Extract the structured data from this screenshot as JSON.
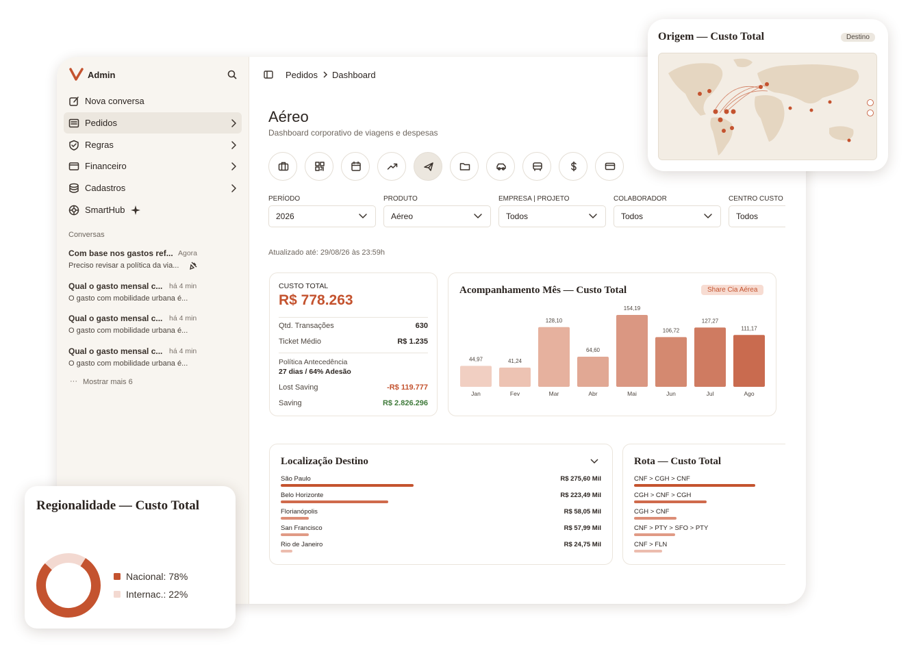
{
  "sidebar": {
    "brand": "Admin",
    "nav": [
      "Nova conversa",
      "Pedidos",
      "Regras",
      "Financeiro",
      "Cadastros",
      "SmartHub"
    ],
    "section": "Conversas",
    "conversations": [
      {
        "title": "Com base nos gastos ref...",
        "time": "Agora",
        "preview": "Preciso revisar a política da via..."
      },
      {
        "title": "Qual o gasto mensal c...",
        "time": "há 4 min",
        "preview": "O gasto com mobilidade urbana é..."
      },
      {
        "title": "Qual o gasto mensal c...",
        "time": "há 4 min",
        "preview": "O gasto com mobilidade urbana é..."
      },
      {
        "title": "Qual o gasto mensal c...",
        "time": "há 4 min",
        "preview": "O gasto com mobilidade urbana é..."
      }
    ],
    "more": "Mostrar mais 6"
  },
  "breadcrumb": [
    "Pedidos",
    "Dashboard"
  ],
  "page": {
    "title": "Aéreo",
    "subtitle": "Dashboard corporativo de viagens e despesas"
  },
  "filters": [
    {
      "label": "PERÍODO",
      "value": "2026"
    },
    {
      "label": "PRODUTO",
      "value": "Aéreo"
    },
    {
      "label": "EMPRESA | PROJETO",
      "value": "Todos"
    },
    {
      "label": "COLABORADOR",
      "value": "Todos"
    },
    {
      "label": "CENTRO CUSTO",
      "value": "Todos"
    }
  ],
  "updated": "Atualizado até: 29/08/26 às 23:59h",
  "summary": {
    "label": "CUSTO TOTAL",
    "total": "R$ 778.263",
    "rows": [
      {
        "label": "Qtd. Transações",
        "value": "630"
      },
      {
        "label": "Ticket Médio",
        "value": "R$ 1.235"
      }
    ],
    "policy": {
      "label": "Política Antecedência",
      "value": "27 dias / 64% Adesão"
    },
    "lost_saving": {
      "label": "Lost Saving",
      "value": "-R$ 119.777"
    },
    "saving": {
      "label": "Saving",
      "value": "R$ 2.826.296"
    }
  },
  "monthly_chart": {
    "type": "bar",
    "title": "Acompanhamento Mês — Custo Total",
    "badge": "Share Cia Aérea",
    "categories": [
      "Jan",
      "Fev",
      "Mar",
      "Abr",
      "Mai",
      "Jun",
      "Jul",
      "Ago"
    ],
    "values": [
      44.97,
      41.24,
      128.1,
      64.6,
      154.19,
      106.72,
      127.27,
      111.17
    ],
    "value_labels": [
      "44,97",
      "41,24",
      "128,10",
      "64,60",
      "154,19",
      "106,72",
      "127,27",
      "111,17"
    ],
    "colors": [
      "#f1cfc2",
      "#edc3b3",
      "#e6b19e",
      "#e1a894",
      "#da9782",
      "#d48970",
      "#cf7b61",
      "#c96b4f"
    ]
  },
  "destinations": {
    "title": "Localização Destino",
    "categories": [
      "São Paulo",
      "Belo Horizonte",
      "Florianópolis",
      "San Francisco",
      "Rio de Janeiro"
    ],
    "values": [
      275.6,
      223.49,
      58.05,
      57.99,
      24.75
    ],
    "value_labels": [
      "R$ 275,60 Mil",
      "R$ 223,49 Mil",
      "R$ 58,05 Mil",
      "R$ 57,99 Mil",
      "R$ 24,75 Mil"
    ],
    "colors": [
      "#c4532f",
      "#cf6a4c",
      "#dc8d76",
      "#e09a85",
      "#ecbcae"
    ]
  },
  "routes": {
    "title": "Rota — Custo Total",
    "categories": [
      "CNF > CGH > CNF",
      "CGH > CNF > CGH",
      "CGH > CNF",
      "CNF > PTY > SFO > PTY",
      "CNF > FLN"
    ],
    "values": [
      100,
      60,
      35,
      34,
      23
    ],
    "colors": [
      "#c4532f",
      "#cf6a4c",
      "#dc8d76",
      "#e09a85",
      "#ecbcae"
    ]
  },
  "map_card": {
    "title": "Origem — Custo Total",
    "badge": "Destino"
  },
  "regional": {
    "type": "pie",
    "title": "Regionalidade — Custo Total",
    "labels": [
      "Nacional: 78%",
      "Internac.: 22%"
    ],
    "values": [
      78,
      22
    ],
    "colors": [
      "#c4532f",
      "#f3d9d1"
    ]
  }
}
